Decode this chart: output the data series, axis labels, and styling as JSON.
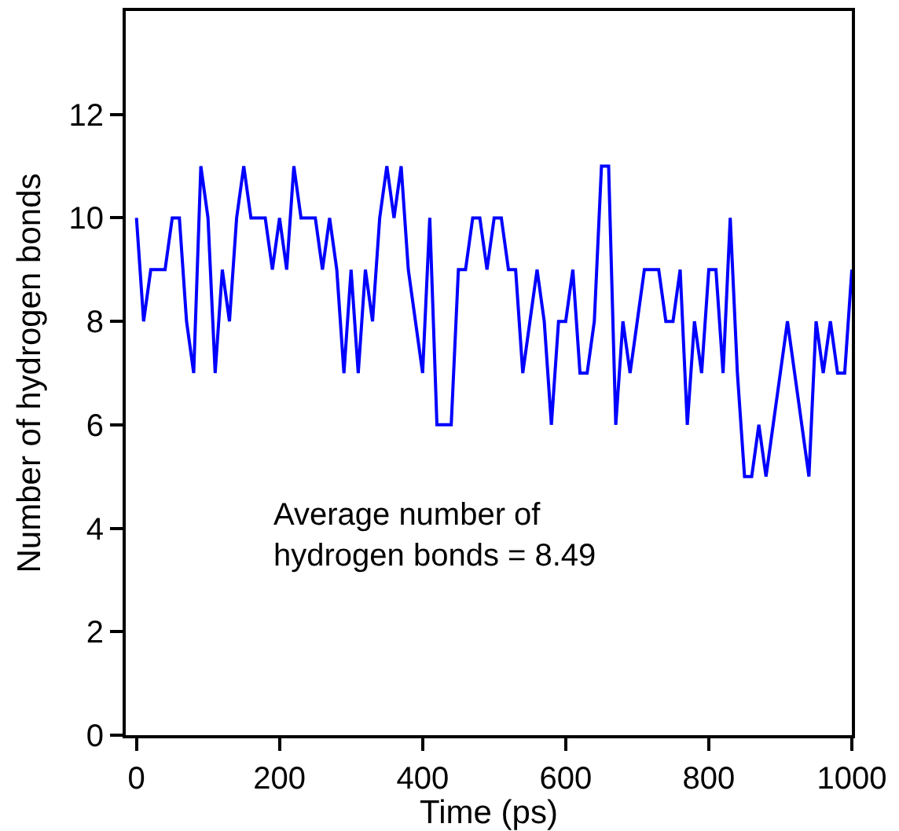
{
  "chart_data": {
    "type": "line",
    "xlabel": "Time (ps)",
    "ylabel": "Number of hydrogen bonds",
    "x": [
      0,
      10,
      20,
      30,
      40,
      50,
      60,
      70,
      80,
      90,
      100,
      110,
      120,
      130,
      140,
      150,
      160,
      170,
      180,
      190,
      200,
      210,
      220,
      230,
      240,
      250,
      260,
      270,
      280,
      290,
      300,
      310,
      320,
      330,
      340,
      350,
      360,
      370,
      380,
      390,
      400,
      410,
      420,
      430,
      440,
      450,
      460,
      470,
      480,
      490,
      500,
      510,
      520,
      530,
      540,
      550,
      560,
      570,
      580,
      590,
      600,
      610,
      620,
      630,
      640,
      650,
      660,
      670,
      680,
      690,
      700,
      710,
      720,
      730,
      740,
      750,
      760,
      770,
      780,
      790,
      800,
      810,
      820,
      830,
      840,
      850,
      860,
      870,
      880,
      890,
      900,
      910,
      920,
      930,
      940,
      950,
      960,
      970,
      980,
      990,
      1000
    ],
    "series": [
      {
        "color": "#0000ff",
        "values": [
          10,
          8,
          9,
          9,
          9,
          10,
          10,
          8,
          7,
          11,
          10,
          7,
          9,
          8,
          10,
          11,
          10,
          10,
          10,
          9,
          10,
          9,
          11,
          10,
          10,
          10,
          9,
          10,
          9,
          7,
          9,
          7,
          9,
          8,
          10,
          11,
          10,
          11,
          9,
          8,
          7,
          10,
          6,
          6,
          6,
          9,
          9,
          10,
          10,
          9,
          10,
          10,
          9,
          9,
          7,
          8,
          9,
          8,
          6,
          8,
          8,
          9,
          7,
          7,
          8,
          11,
          11,
          6,
          8,
          7,
          8,
          9,
          9,
          9,
          8,
          8,
          9,
          6,
          8,
          7,
          9,
          9,
          7,
          10,
          7,
          5,
          5,
          6,
          5,
          6,
          7,
          8,
          7,
          6,
          5,
          8,
          7,
          8,
          7,
          7,
          9
        ]
      }
    ],
    "xlim": [
      -15,
      1000
    ],
    "ylim": [
      0,
      14
    ],
    "xticks": [
      0,
      200,
      400,
      600,
      800,
      1000
    ],
    "yticks": [
      0,
      2,
      4,
      6,
      8,
      10,
      12
    ],
    "marker": "none",
    "line_style": "solid",
    "annotations": [
      "Average number of\nhydrogen bonds = 8.49"
    ]
  }
}
